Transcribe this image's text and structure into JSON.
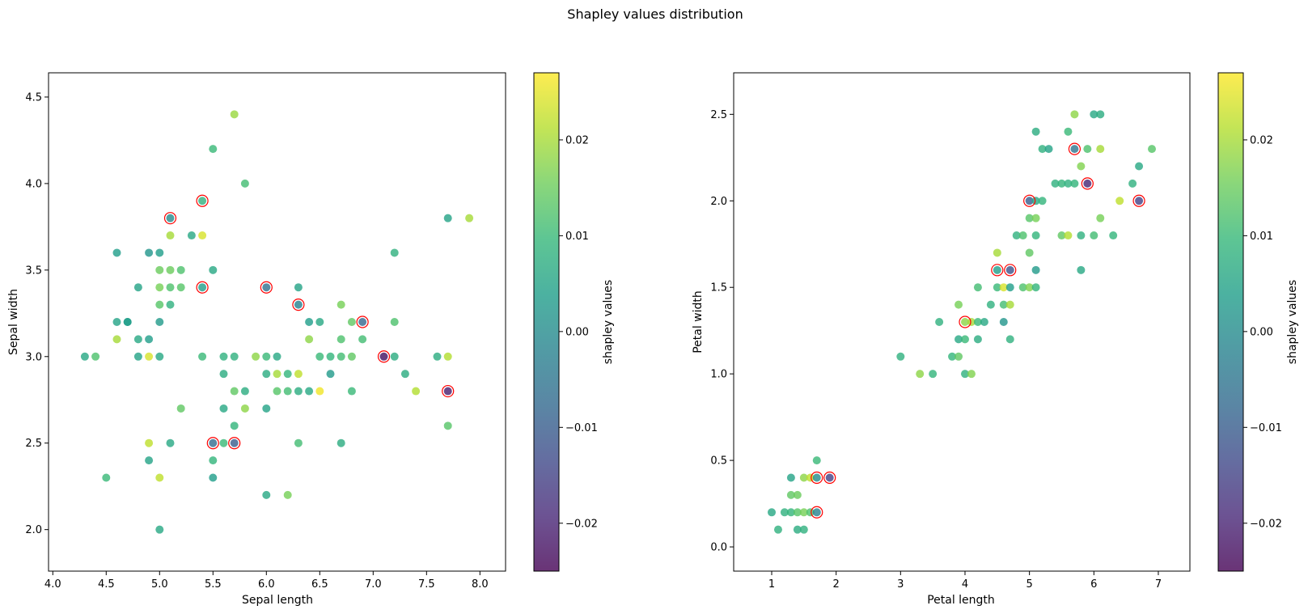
{
  "suptitle": "Shapley values distribution",
  "colormap": "viridis",
  "highlight_color": "#ff0000",
  "chart_data": [
    {
      "type": "scatter",
      "title": "",
      "xlabel": "Sepal length",
      "ylabel": "Sepal width",
      "xlim": [
        3.96,
        8.24
      ],
      "ylim": [
        1.76,
        4.64
      ],
      "xticks": [
        "4.0",
        "4.5",
        "5.0",
        "5.5",
        "6.0",
        "6.5",
        "7.0",
        "7.5",
        "8.0"
      ],
      "yticks": [
        "2.0",
        "2.5",
        "3.0",
        "3.5",
        "4.0",
        "4.5"
      ],
      "colorbar": {
        "label": "shapley values",
        "range": [
          -0.025,
          0.027
        ],
        "ticks": [
          "−0.02",
          "−0.01",
          "0.00",
          "0.01",
          "0.02"
        ],
        "tick_values": [
          -0.02,
          -0.01,
          0.0,
          0.01,
          0.02
        ]
      },
      "points": [
        [
          4.3,
          3.0,
          0.006
        ],
        [
          4.4,
          3.0,
          0.012
        ],
        [
          4.5,
          2.3,
          0.01
        ],
        [
          4.6,
          3.1,
          0.02
        ],
        [
          4.6,
          3.2,
          0.005
        ],
        [
          4.6,
          3.6,
          0.004
        ],
        [
          4.7,
          3.2,
          0.005
        ],
        [
          4.7,
          3.2,
          0.004
        ],
        [
          4.8,
          3.0,
          0.005
        ],
        [
          4.8,
          3.1,
          0.006
        ],
        [
          4.8,
          3.4,
          0.005
        ],
        [
          4.9,
          2.4,
          0.005
        ],
        [
          4.9,
          2.5,
          0.022
        ],
        [
          4.9,
          3.0,
          0.024
        ],
        [
          4.9,
          3.1,
          0.004
        ],
        [
          4.9,
          3.6,
          0.002
        ],
        [
          5.0,
          2.0,
          0.006
        ],
        [
          5.0,
          2.3,
          0.022
        ],
        [
          5.0,
          3.0,
          0.006
        ],
        [
          5.0,
          3.2,
          0.003
        ],
        [
          5.0,
          3.3,
          0.013
        ],
        [
          5.0,
          3.4,
          0.016
        ],
        [
          5.0,
          3.5,
          0.015
        ],
        [
          5.0,
          3.6,
          0.004
        ],
        [
          5.1,
          2.5,
          0.006
        ],
        [
          5.1,
          3.3,
          0.008
        ],
        [
          5.1,
          3.4,
          0.012
        ],
        [
          5.1,
          3.5,
          0.015
        ],
        [
          5.1,
          3.7,
          0.02
        ],
        [
          5.1,
          3.8,
          0.0
        ],
        [
          5.2,
          2.7,
          0.014
        ],
        [
          5.2,
          3.4,
          0.013
        ],
        [
          5.2,
          3.5,
          0.012
        ],
        [
          5.3,
          3.7,
          0.006
        ],
        [
          5.4,
          3.0,
          0.01
        ],
        [
          5.4,
          3.4,
          0.004
        ],
        [
          5.4,
          3.7,
          0.024
        ],
        [
          5.4,
          3.9,
          0.008
        ],
        [
          5.5,
          2.3,
          0.004
        ],
        [
          5.5,
          2.4,
          0.009
        ],
        [
          5.5,
          2.5,
          -0.007
        ],
        [
          5.5,
          3.5,
          0.006
        ],
        [
          5.5,
          4.2,
          0.01
        ],
        [
          5.6,
          2.5,
          0.01
        ],
        [
          5.6,
          2.7,
          0.006
        ],
        [
          5.6,
          2.9,
          0.007
        ],
        [
          5.6,
          3.0,
          0.008
        ],
        [
          5.7,
          2.5,
          -0.01
        ],
        [
          5.7,
          2.8,
          0.014
        ],
        [
          5.7,
          3.0,
          0.008
        ],
        [
          5.7,
          2.6,
          0.009
        ],
        [
          5.7,
          4.4,
          0.019
        ],
        [
          5.8,
          2.7,
          0.018
        ],
        [
          5.8,
          2.8,
          0.007
        ],
        [
          5.8,
          4.0,
          0.011
        ],
        [
          5.9,
          3.0,
          0.018
        ],
        [
          6.0,
          2.2,
          0.006
        ],
        [
          6.0,
          2.7,
          0.005
        ],
        [
          6.0,
          2.9,
          0.007
        ],
        [
          6.0,
          3.0,
          0.01
        ],
        [
          6.0,
          3.4,
          -0.006
        ],
        [
          6.1,
          2.8,
          0.013
        ],
        [
          6.1,
          2.9,
          0.02
        ],
        [
          6.1,
          3.0,
          0.006
        ],
        [
          6.2,
          2.2,
          0.016
        ],
        [
          6.2,
          2.8,
          0.011
        ],
        [
          6.2,
          2.9,
          0.009
        ],
        [
          6.3,
          2.5,
          0.011
        ],
        [
          6.3,
          2.8,
          0.007
        ],
        [
          6.3,
          2.9,
          0.022
        ],
        [
          6.3,
          3.3,
          -0.002
        ],
        [
          6.3,
          3.4,
          0.005
        ],
        [
          6.4,
          2.8,
          0.006
        ],
        [
          6.4,
          3.1,
          0.018
        ],
        [
          6.4,
          3.2,
          0.004
        ],
        [
          6.5,
          2.8,
          0.026
        ],
        [
          6.5,
          3.0,
          0.01
        ],
        [
          6.5,
          3.2,
          0.006
        ],
        [
          6.6,
          2.9,
          0.003
        ],
        [
          6.6,
          3.0,
          0.009
        ],
        [
          6.7,
          2.5,
          0.007
        ],
        [
          6.7,
          3.0,
          0.011
        ],
        [
          6.7,
          3.1,
          0.012
        ],
        [
          6.7,
          3.3,
          0.016
        ],
        [
          6.8,
          2.8,
          0.01
        ],
        [
          6.8,
          3.0,
          0.014
        ],
        [
          6.8,
          3.2,
          0.014
        ],
        [
          6.9,
          3.1,
          0.011
        ],
        [
          6.9,
          3.2,
          -0.008
        ],
        [
          7.1,
          3.0,
          -0.023
        ],
        [
          7.2,
          3.0,
          0.007
        ],
        [
          7.2,
          3.2,
          0.012
        ],
        [
          7.2,
          3.6,
          0.008
        ],
        [
          7.3,
          2.9,
          0.007
        ],
        [
          7.4,
          2.8,
          0.021
        ],
        [
          7.6,
          3.0,
          0.007
        ],
        [
          7.7,
          2.6,
          0.013
        ],
        [
          7.7,
          2.8,
          -0.021
        ],
        [
          7.7,
          3.0,
          0.021
        ],
        [
          7.7,
          3.8,
          0.005
        ],
        [
          7.9,
          3.8,
          0.02
        ]
      ],
      "highlighted": [
        [
          5.1,
          3.8
        ],
        [
          5.4,
          3.9
        ],
        [
          5.4,
          3.4
        ],
        [
          6.0,
          3.4
        ],
        [
          6.3,
          3.3
        ],
        [
          6.9,
          3.2
        ],
        [
          7.1,
          3.0
        ],
        [
          7.7,
          2.8
        ],
        [
          5.5,
          2.5
        ],
        [
          5.7,
          2.5
        ]
      ]
    },
    {
      "type": "scatter",
      "title": "",
      "xlabel": "Petal length",
      "ylabel": "Petal width",
      "xlim": [
        0.41,
        7.49
      ],
      "ylim": [
        -0.14,
        2.74
      ],
      "xticks": [
        "1",
        "2",
        "3",
        "4",
        "5",
        "6",
        "7"
      ],
      "yticks": [
        "0.0",
        "0.5",
        "1.0",
        "1.5",
        "2.0",
        "2.5"
      ],
      "colorbar": {
        "label": "shapley values",
        "range": [
          -0.025,
          0.027
        ],
        "ticks": [
          "−0.02",
          "−0.01",
          "0.00",
          "0.01",
          "0.02"
        ],
        "tick_values": [
          -0.02,
          -0.01,
          0.0,
          0.01,
          0.02
        ]
      },
      "points": [
        [
          1.0,
          0.2,
          0.006
        ],
        [
          1.1,
          0.1,
          0.008
        ],
        [
          1.2,
          0.2,
          0.008
        ],
        [
          1.3,
          0.2,
          0.009
        ],
        [
          1.3,
          0.3,
          0.014
        ],
        [
          1.3,
          0.4,
          0.005
        ],
        [
          1.4,
          0.1,
          0.007
        ],
        [
          1.4,
          0.2,
          0.013
        ],
        [
          1.4,
          0.3,
          0.015
        ],
        [
          1.5,
          0.1,
          0.008
        ],
        [
          1.5,
          0.2,
          0.016
        ],
        [
          1.5,
          0.4,
          0.018
        ],
        [
          1.6,
          0.2,
          0.012
        ],
        [
          1.6,
          0.4,
          0.022
        ],
        [
          1.7,
          0.2,
          -0.002
        ],
        [
          1.7,
          0.4,
          0.0
        ],
        [
          1.7,
          0.5,
          0.01
        ],
        [
          1.9,
          0.4,
          -0.015
        ],
        [
          3.0,
          1.1,
          0.008
        ],
        [
          3.3,
          1.0,
          0.018
        ],
        [
          3.5,
          1.0,
          0.009
        ],
        [
          3.6,
          1.3,
          0.008
        ],
        [
          3.8,
          1.1,
          0.009
        ],
        [
          3.9,
          1.1,
          0.014
        ],
        [
          3.9,
          1.2,
          0.006
        ],
        [
          3.9,
          1.4,
          0.016
        ],
        [
          4.0,
          1.0,
          0.008
        ],
        [
          4.0,
          1.2,
          0.01
        ],
        [
          4.0,
          1.3,
          0.018
        ],
        [
          4.1,
          1.0,
          0.017
        ],
        [
          4.1,
          1.3,
          0.02
        ],
        [
          4.2,
          1.2,
          0.007
        ],
        [
          4.2,
          1.3,
          0.01
        ],
        [
          4.2,
          1.5,
          0.011
        ],
        [
          4.3,
          1.3,
          0.006
        ],
        [
          4.4,
          1.4,
          0.008
        ],
        [
          4.5,
          1.5,
          0.01
        ],
        [
          4.5,
          1.6,
          0.004
        ],
        [
          4.5,
          1.7,
          0.02
        ],
        [
          4.6,
          1.3,
          0.002
        ],
        [
          4.6,
          1.4,
          0.011
        ],
        [
          4.6,
          1.5,
          0.024
        ],
        [
          4.7,
          1.2,
          0.008
        ],
        [
          4.7,
          1.4,
          0.02
        ],
        [
          4.7,
          1.5,
          0.004
        ],
        [
          4.7,
          1.6,
          -0.012
        ],
        [
          4.8,
          1.8,
          0.008
        ],
        [
          4.9,
          1.5,
          0.012
        ],
        [
          4.9,
          1.8,
          0.012
        ],
        [
          5.0,
          1.5,
          0.017
        ],
        [
          5.0,
          1.7,
          0.014
        ],
        [
          5.0,
          1.9,
          0.013
        ],
        [
          5.0,
          2.0,
          -0.01
        ],
        [
          5.1,
          1.5,
          0.009
        ],
        [
          5.1,
          1.6,
          0.003
        ],
        [
          5.1,
          1.8,
          0.009
        ],
        [
          5.1,
          1.9,
          0.016
        ],
        [
          5.1,
          2.0,
          0.006
        ],
        [
          5.1,
          2.4,
          0.007
        ],
        [
          5.2,
          2.0,
          0.009
        ],
        [
          5.2,
          2.3,
          0.008
        ],
        [
          5.3,
          2.3,
          0.005
        ],
        [
          5.4,
          2.1,
          0.008
        ],
        [
          5.5,
          1.8,
          0.014
        ],
        [
          5.5,
          2.1,
          0.009
        ],
        [
          5.6,
          1.8,
          0.021
        ],
        [
          5.6,
          2.1,
          0.008
        ],
        [
          5.6,
          2.4,
          0.01
        ],
        [
          5.7,
          2.1,
          0.009
        ],
        [
          5.7,
          2.3,
          -0.005
        ],
        [
          5.7,
          2.5,
          0.018
        ],
        [
          5.8,
          1.6,
          0.006
        ],
        [
          5.8,
          1.8,
          0.008
        ],
        [
          5.8,
          2.2,
          0.017
        ],
        [
          5.9,
          2.1,
          -0.02
        ],
        [
          5.9,
          2.3,
          0.012
        ],
        [
          6.0,
          1.8,
          0.011
        ],
        [
          6.0,
          2.5,
          0.006
        ],
        [
          6.1,
          1.9,
          0.016
        ],
        [
          6.1,
          2.3,
          0.02
        ],
        [
          6.1,
          2.5,
          0.007
        ],
        [
          6.3,
          1.8,
          0.009
        ],
        [
          6.4,
          2.0,
          0.022
        ],
        [
          6.6,
          2.1,
          0.008
        ],
        [
          6.7,
          2.0,
          -0.015
        ],
        [
          6.7,
          2.2,
          0.006
        ],
        [
          6.9,
          2.3,
          0.013
        ]
      ],
      "highlighted": [
        [
          1.7,
          0.2
        ],
        [
          1.7,
          0.4
        ],
        [
          1.9,
          0.4
        ],
        [
          4.0,
          1.3
        ],
        [
          4.5,
          1.6
        ],
        [
          4.7,
          1.6
        ],
        [
          5.0,
          2.0
        ],
        [
          5.7,
          2.3
        ],
        [
          5.9,
          2.1
        ],
        [
          6.7,
          2.0
        ]
      ]
    }
  ]
}
